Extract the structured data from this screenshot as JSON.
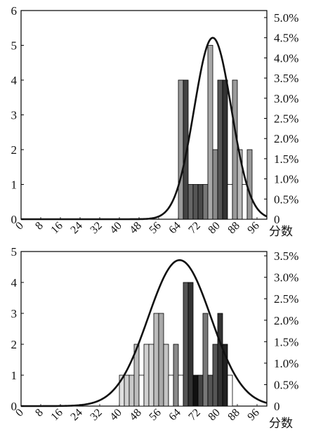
{
  "chart_data": [
    {
      "type": "bar",
      "xlabel": "分数",
      "x_ticks": [
        "0",
        "8",
        "16",
        "24",
        "32",
        "40",
        "48",
        "56",
        "64",
        "72",
        "80",
        "88",
        "96"
      ],
      "xlim": [
        0,
        100
      ],
      "ylim_left": [
        0,
        6
      ],
      "y_ticks_left": [
        "0",
        "1",
        "2",
        "3",
        "4",
        "5",
        "6"
      ],
      "ylim_right": [
        0,
        5
      ],
      "y_ticks_right": [
        "0",
        "0.5%",
        "1.0%",
        "1.5%",
        "2.0%",
        "2.5%",
        "3.0%",
        "3.5%",
        "4.0%",
        "4.5%",
        "5.0%"
      ],
      "bars": [
        {
          "x": 65,
          "value": 4,
          "color": "#9a9a9a"
        },
        {
          "x": 67,
          "value": 4,
          "color": "#444444"
        },
        {
          "x": 69,
          "value": 1,
          "color": "#666666"
        },
        {
          "x": 71,
          "value": 1,
          "color": "#555555"
        },
        {
          "x": 73,
          "value": 1,
          "color": "#4a4a4a"
        },
        {
          "x": 75,
          "value": 1,
          "color": "#777777"
        },
        {
          "x": 77,
          "value": 5,
          "color": "#a8a8a8"
        },
        {
          "x": 79,
          "value": 2,
          "color": "#8a8a8a"
        },
        {
          "x": 81,
          "value": 4,
          "color": "#555555"
        },
        {
          "x": 83,
          "value": 4,
          "color": "#333333"
        },
        {
          "x": 85,
          "value": 1,
          "color": "#ffffff"
        },
        {
          "x": 87,
          "value": 4,
          "color": "#9a9a9a"
        },
        {
          "x": 89,
          "value": 2,
          "color": "#bbbbbb"
        },
        {
          "x": 91,
          "value": 1,
          "color": "#ffffff"
        },
        {
          "x": 93,
          "value": 2,
          "color": "#999999"
        }
      ],
      "curve": {
        "mean": 78,
        "sd": 7.6,
        "peak_percent": 4.5,
        "color": "#111111"
      }
    },
    {
      "type": "bar",
      "xlabel": "分数",
      "x_ticks": [
        "0",
        "8",
        "16",
        "24",
        "32",
        "40",
        "48",
        "56",
        "64",
        "72",
        "80",
        "88",
        "96"
      ],
      "xlim": [
        0,
        100
      ],
      "ylim_left": [
        0,
        5
      ],
      "y_ticks_left": [
        "0",
        "1",
        "2",
        "3",
        "4",
        "5"
      ],
      "ylim_right": [
        0,
        3.6
      ],
      "y_ticks_right": [
        "0",
        "0.5%",
        "1.0%",
        "1.5%",
        "2.0%",
        "2.5%",
        "3.0%",
        "3.5%"
      ],
      "bars": [
        {
          "x": 41,
          "value": 1,
          "color": "#e0e0e0"
        },
        {
          "x": 43,
          "value": 1,
          "color": "#d0d0d0"
        },
        {
          "x": 45,
          "value": 1,
          "color": "#c8c8c8"
        },
        {
          "x": 47,
          "value": 2,
          "color": "#bdbdbd"
        },
        {
          "x": 49,
          "value": 1,
          "color": "#ffffff"
        },
        {
          "x": 51,
          "value": 2,
          "color": "#cfcfcf"
        },
        {
          "x": 53,
          "value": 2,
          "color": "#d6d6d6"
        },
        {
          "x": 55,
          "value": 3,
          "color": "#bbbbbb"
        },
        {
          "x": 57,
          "value": 3,
          "color": "#aaaaaa"
        },
        {
          "x": 59,
          "value": 2,
          "color": "#c4c4c4"
        },
        {
          "x": 61,
          "value": 1,
          "color": "#ffffff"
        },
        {
          "x": 63,
          "value": 2,
          "color": "#8a8a8a"
        },
        {
          "x": 65,
          "value": 1,
          "color": "#ffffff"
        },
        {
          "x": 67,
          "value": 4,
          "color": "#555555"
        },
        {
          "x": 69,
          "value": 4,
          "color": "#333333"
        },
        {
          "x": 71,
          "value": 1,
          "color": "#111111"
        },
        {
          "x": 73,
          "value": 1,
          "color": "#444444"
        },
        {
          "x": 75,
          "value": 3,
          "color": "#777777"
        },
        {
          "x": 77,
          "value": 1,
          "color": "#555555"
        },
        {
          "x": 79,
          "value": 2,
          "color": "#555555"
        },
        {
          "x": 81,
          "value": 3,
          "color": "#333333"
        },
        {
          "x": 83,
          "value": 2,
          "color": "#222222"
        },
        {
          "x": 85,
          "value": 1,
          "color": "#ffffff"
        }
      ],
      "curve": {
        "mean": 64.5,
        "sd": 12.8,
        "peak_percent": 3.4,
        "color": "#111111"
      }
    }
  ]
}
